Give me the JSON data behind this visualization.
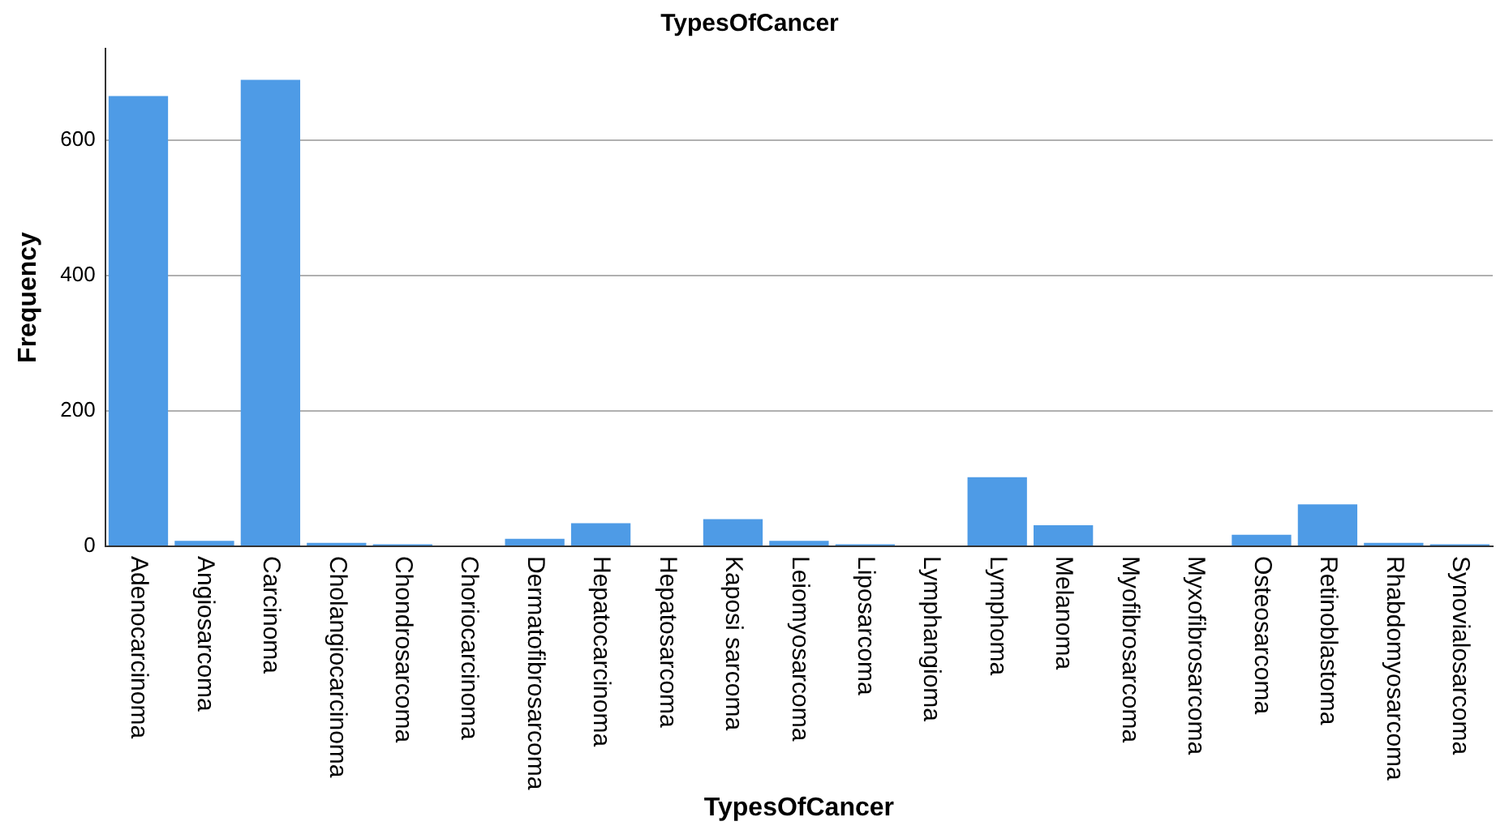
{
  "chart_data": {
    "type": "bar",
    "title": "TypesOfCancer",
    "xlabel": "TypesOfCancer",
    "ylabel": "Frequency",
    "categories": [
      "Adenocarcinoma",
      "Angiosarcoma",
      "Carcinoma",
      "Cholangiocarcinoma",
      "Chondrosarcoma",
      "Choriocarcinoma",
      "Dermatofibrosarcoma",
      "Hepatocarcinoma",
      "Hepatosarcoma",
      "Kaposi sarcoma",
      "Leiomyosarcoma",
      "Liposarcoma",
      "Lymphangioma",
      "Lymphoma",
      "Melanoma",
      "Myofibrosarcoma",
      "Myxofibrosarcoma",
      "Osteosarcoma",
      "Retinoblastoma",
      "Rhabdomyosarcoma",
      "Synovialosarcoma"
    ],
    "values": [
      665,
      8,
      689,
      5,
      3,
      null,
      11,
      34,
      null,
      40,
      8,
      3,
      null,
      102,
      31,
      null,
      null,
      17,
      62,
      5,
      3
    ],
    "color": "#4e9be6",
    "ylim": [
      0,
      735
    ],
    "yticks": [
      0,
      200,
      400,
      600
    ],
    "grid": "y"
  }
}
